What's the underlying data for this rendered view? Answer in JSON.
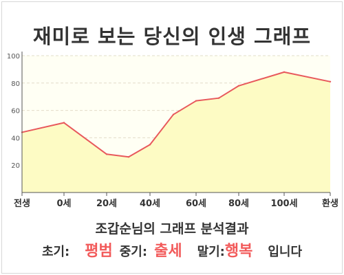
{
  "title": "재미로 보는 당신의 인생 그래프",
  "colors": {
    "line": "#e8585c",
    "fill": "#fdfbc4",
    "plot_bg": "#fffff4",
    "grid": "#e2dcc8",
    "axis": "#555555",
    "highlight": "#f25a5a",
    "text": "#333333"
  },
  "chart_data": {
    "type": "area",
    "x_categories": [
      "전생",
      "0세",
      "20세",
      "40세",
      "60세",
      "80세",
      "100세",
      "환생"
    ],
    "points": [
      {
        "age": "전생",
        "value": 44
      },
      {
        "age": "0세",
        "value": 51
      },
      {
        "age": "20세",
        "value": 28
      },
      {
        "age": "30세",
        "value": 26
      },
      {
        "age": "40세",
        "value": 35
      },
      {
        "age": "50세",
        "value": 57
      },
      {
        "age": "60세",
        "value": 67
      },
      {
        "age": "70세",
        "value": 69
      },
      {
        "age": "80세",
        "value": 78
      },
      {
        "age": "100세",
        "value": 88
      },
      {
        "age": "환생",
        "value": 81
      }
    ],
    "ylim": [
      0,
      100
    ],
    "y_ticks": [
      20,
      40,
      60,
      80,
      100
    ],
    "grid": true,
    "legend": "none"
  },
  "summary": {
    "heading": "조갑순님의 그래프 분석결과",
    "early_label": "초기:",
    "early_value": "평범",
    "middle_label": "중기:",
    "middle_value": "출세",
    "late_label": "말기:",
    "late_value": "행복",
    "suffix": "입니다"
  }
}
